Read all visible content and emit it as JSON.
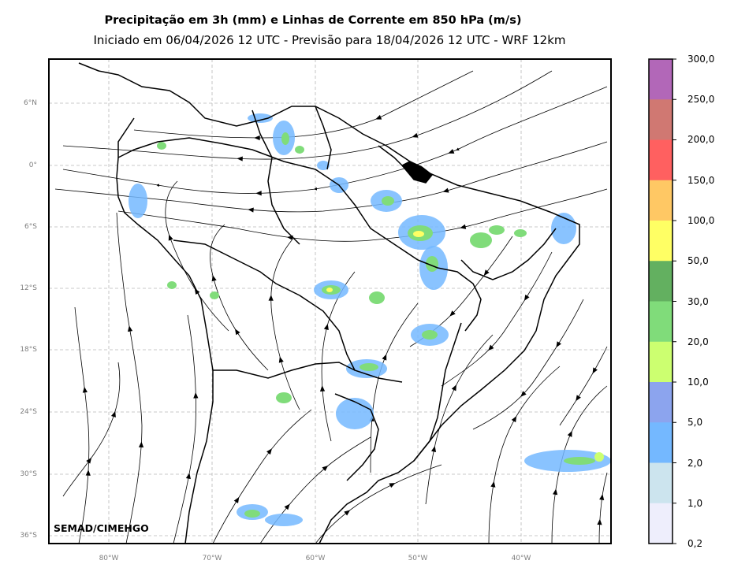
{
  "title": "Precipitação em 3h (mm) e Linhas de Corrente em 850 hPa (m/s)",
  "subtitle": "Iniciado em 06/04/2026 12 UTC - Previsão para 18/04/2026 12 UTC - WRF 12km",
  "credit": "SEMAD/CIMEHGO",
  "lat_labels": [
    "6°N",
    "0°",
    "6°S",
    "12°S",
    "18°S",
    "24°S",
    "30°S",
    "36°S"
  ],
  "lon_labels": [
    "80°W",
    "70°W",
    "60°W",
    "50°W",
    "40°W"
  ],
  "colorbar": {
    "labels": [
      "300,0",
      "250,0",
      "200,0",
      "150,0",
      "100,0",
      "50,0",
      "30,0",
      "20,0",
      "10,0",
      "5,0",
      "2,0",
      "1,0",
      "0,2"
    ],
    "colors": [
      "#b267b8",
      "#d07872",
      "#ff6060",
      "#ffc864",
      "#ffff64",
      "#63b060",
      "#80dc7a",
      "#ccff70",
      "#8ca4ee",
      "#74b8ff",
      "#cce4ee",
      "#eeeefc"
    ]
  }
}
